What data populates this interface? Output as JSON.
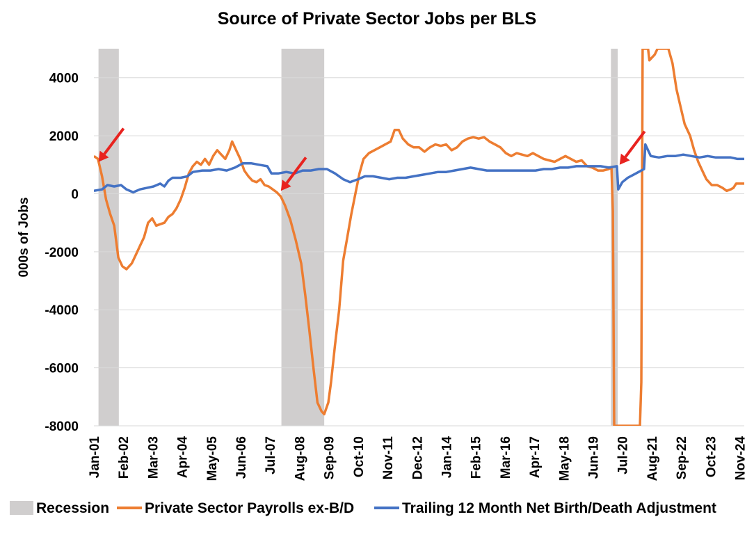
{
  "chart_data": {
    "type": "line",
    "title": "Source of Private Sector Jobs per BLS",
    "ylabel": "000s of Jobs",
    "xlabel": "",
    "ylim": [
      -8000,
      5000
    ],
    "y_ticks": [
      4000,
      2000,
      0,
      -2000,
      -4000,
      -6000,
      -8000
    ],
    "y_tick_labels": [
      "4000",
      "2000",
      "0",
      "-2000",
      "-4000",
      "-6000",
      "-8000"
    ],
    "x_range": [
      2001.0,
      2025.0
    ],
    "x_tick_labels": [
      "Jan-01",
      "Feb-02",
      "Mar-03",
      "Apr-04",
      "May-05",
      "Jun-06",
      "Jul-07",
      "Aug-08",
      "Sep-09",
      "Oct-10",
      "Nov-11",
      "Dec-12",
      "Jan-14",
      "Feb-15",
      "Mar-16",
      "Apr-17",
      "May-18",
      "Jun-19",
      "Jul-20",
      "Aug-21",
      "Sep-22",
      "Oct-23",
      "Nov-24"
    ],
    "x_tick_values": [
      2001.0,
      2002.083,
      2003.167,
      2004.25,
      2005.333,
      2006.417,
      2007.5,
      2008.583,
      2009.667,
      2010.75,
      2011.833,
      2012.917,
      2014.0,
      2015.083,
      2016.167,
      2017.25,
      2018.333,
      2019.417,
      2020.5,
      2021.583,
      2022.667,
      2023.75,
      2024.833
    ],
    "grid": "horizontal",
    "legend_position": "bottom",
    "recessions": [
      {
        "start": 2001.17,
        "end": 2001.92
      },
      {
        "start": 2007.92,
        "end": 2009.5
      },
      {
        "start": 2020.08,
        "end": 2020.33
      }
    ],
    "annotations": [
      {
        "type": "arrow",
        "color": "#E8231F",
        "x": 2001.17,
        "y": 1100
      },
      {
        "type": "arrow",
        "color": "#E8231F",
        "x": 2007.9,
        "y": 100
      },
      {
        "type": "arrow",
        "color": "#E8231F",
        "x": 2020.4,
        "y": 1000
      }
    ],
    "legend": [
      "Recession",
      "Private Sector Payrolls ex-B/D",
      "Trailing 12 Month Net Birth/Death Adjustment"
    ],
    "series": [
      {
        "name": "Private Sector Payrolls ex-B/D",
        "color": "#ED7D31",
        "points": [
          [
            2001.0,
            1300
          ],
          [
            2001.15,
            1200
          ],
          [
            2001.3,
            600
          ],
          [
            2001.45,
            -200
          ],
          [
            2001.6,
            -700
          ],
          [
            2001.75,
            -1100
          ],
          [
            2001.9,
            -2200
          ],
          [
            2002.05,
            -2500
          ],
          [
            2002.2,
            -2600
          ],
          [
            2002.4,
            -2400
          ],
          [
            2002.55,
            -2100
          ],
          [
            2002.7,
            -1800
          ],
          [
            2002.85,
            -1500
          ],
          [
            2003.0,
            -1000
          ],
          [
            2003.15,
            -850
          ],
          [
            2003.3,
            -1100
          ],
          [
            2003.45,
            -1050
          ],
          [
            2003.6,
            -1000
          ],
          [
            2003.75,
            -800
          ],
          [
            2003.9,
            -700
          ],
          [
            2004.05,
            -500
          ],
          [
            2004.2,
            -200
          ],
          [
            2004.35,
            200
          ],
          [
            2004.5,
            700
          ],
          [
            2004.65,
            950
          ],
          [
            2004.8,
            1100
          ],
          [
            2004.95,
            1000
          ],
          [
            2005.1,
            1200
          ],
          [
            2005.25,
            1000
          ],
          [
            2005.4,
            1300
          ],
          [
            2005.55,
            1500
          ],
          [
            2005.7,
            1350
          ],
          [
            2005.85,
            1200
          ],
          [
            2006.0,
            1500
          ],
          [
            2006.1,
            1800
          ],
          [
            2006.25,
            1500
          ],
          [
            2006.4,
            1200
          ],
          [
            2006.55,
            800
          ],
          [
            2006.7,
            600
          ],
          [
            2006.85,
            450
          ],
          [
            2007.0,
            400
          ],
          [
            2007.15,
            500
          ],
          [
            2007.3,
            300
          ],
          [
            2007.45,
            250
          ],
          [
            2007.6,
            150
          ],
          [
            2007.75,
            50
          ],
          [
            2007.9,
            -100
          ],
          [
            2008.05,
            -400
          ],
          [
            2008.25,
            -900
          ],
          [
            2008.45,
            -1600
          ],
          [
            2008.65,
            -2400
          ],
          [
            2008.8,
            -3500
          ],
          [
            2008.95,
            -4700
          ],
          [
            2009.1,
            -6000
          ],
          [
            2009.25,
            -7200
          ],
          [
            2009.4,
            -7500
          ],
          [
            2009.5,
            -7600
          ],
          [
            2009.65,
            -7200
          ],
          [
            2009.75,
            -6500
          ],
          [
            2009.9,
            -5200
          ],
          [
            2010.05,
            -4000
          ],
          [
            2010.2,
            -2300
          ],
          [
            2010.35,
            -1500
          ],
          [
            2010.5,
            -700
          ],
          [
            2010.65,
            0
          ],
          [
            2010.8,
            700
          ],
          [
            2010.95,
            1200
          ],
          [
            2011.15,
            1400
          ],
          [
            2011.35,
            1500
          ],
          [
            2011.55,
            1600
          ],
          [
            2011.75,
            1700
          ],
          [
            2011.95,
            1800
          ],
          [
            2012.1,
            2200
          ],
          [
            2012.25,
            2200
          ],
          [
            2012.4,
            1900
          ],
          [
            2012.6,
            1700
          ],
          [
            2012.8,
            1600
          ],
          [
            2013.0,
            1600
          ],
          [
            2013.2,
            1450
          ],
          [
            2013.4,
            1600
          ],
          [
            2013.6,
            1700
          ],
          [
            2013.8,
            1650
          ],
          [
            2014.0,
            1700
          ],
          [
            2014.2,
            1500
          ],
          [
            2014.4,
            1600
          ],
          [
            2014.6,
            1800
          ],
          [
            2014.8,
            1900
          ],
          [
            2015.0,
            1950
          ],
          [
            2015.2,
            1900
          ],
          [
            2015.4,
            1950
          ],
          [
            2015.6,
            1800
          ],
          [
            2015.8,
            1700
          ],
          [
            2016.0,
            1600
          ],
          [
            2016.2,
            1400
          ],
          [
            2016.4,
            1300
          ],
          [
            2016.6,
            1400
          ],
          [
            2016.8,
            1350
          ],
          [
            2017.0,
            1300
          ],
          [
            2017.2,
            1400
          ],
          [
            2017.4,
            1300
          ],
          [
            2017.6,
            1200
          ],
          [
            2017.8,
            1150
          ],
          [
            2018.0,
            1100
          ],
          [
            2018.2,
            1200
          ],
          [
            2018.4,
            1300
          ],
          [
            2018.6,
            1200
          ],
          [
            2018.8,
            1100
          ],
          [
            2019.0,
            1150
          ],
          [
            2019.2,
            950
          ],
          [
            2019.4,
            900
          ],
          [
            2019.6,
            800
          ],
          [
            2019.8,
            800
          ],
          [
            2020.0,
            850
          ],
          [
            2020.1,
            900
          ],
          [
            2020.15,
            -600
          ],
          [
            2020.2,
            -8000
          ],
          [
            2021.15,
            -8000
          ],
          [
            2021.2,
            -6500
          ],
          [
            2021.25,
            5000
          ],
          [
            2021.45,
            5000
          ],
          [
            2021.5,
            4600
          ],
          [
            2021.7,
            4800
          ],
          [
            2021.8,
            5000
          ],
          [
            2022.2,
            5000
          ],
          [
            2022.35,
            4500
          ],
          [
            2022.5,
            3600
          ],
          [
            2022.65,
            3000
          ],
          [
            2022.8,
            2400
          ],
          [
            2023.0,
            2000
          ],
          [
            2023.15,
            1500
          ],
          [
            2023.3,
            1100
          ],
          [
            2023.45,
            800
          ],
          [
            2023.6,
            500
          ],
          [
            2023.8,
            300
          ],
          [
            2024.0,
            300
          ],
          [
            2024.2,
            200
          ],
          [
            2024.35,
            100
          ],
          [
            2024.5,
            150
          ],
          [
            2024.6,
            200
          ],
          [
            2024.7,
            350
          ],
          [
            2025.0,
            350
          ]
        ]
      },
      {
        "name": "Trailing 12 Month Net Birth/Death Adjustment",
        "color": "#4472C4",
        "points": [
          [
            2001.0,
            100
          ],
          [
            2001.3,
            150
          ],
          [
            2001.5,
            300
          ],
          [
            2001.75,
            250
          ],
          [
            2002.0,
            300
          ],
          [
            2002.2,
            150
          ],
          [
            2002.45,
            50
          ],
          [
            2002.7,
            150
          ],
          [
            2002.95,
            200
          ],
          [
            2003.2,
            250
          ],
          [
            2003.45,
            350
          ],
          [
            2003.6,
            250
          ],
          [
            2003.75,
            450
          ],
          [
            2003.9,
            550
          ],
          [
            2004.2,
            550
          ],
          [
            2004.45,
            600
          ],
          [
            2004.65,
            750
          ],
          [
            2005.0,
            800
          ],
          [
            2005.3,
            800
          ],
          [
            2005.6,
            850
          ],
          [
            2005.9,
            800
          ],
          [
            2006.2,
            900
          ],
          [
            2006.5,
            1050
          ],
          [
            2006.8,
            1050
          ],
          [
            2007.1,
            1000
          ],
          [
            2007.4,
            950
          ],
          [
            2007.55,
            700
          ],
          [
            2007.8,
            700
          ],
          [
            2008.1,
            750
          ],
          [
            2008.4,
            700
          ],
          [
            2008.7,
            800
          ],
          [
            2009.0,
            800
          ],
          [
            2009.3,
            850
          ],
          [
            2009.6,
            850
          ],
          [
            2009.9,
            700
          ],
          [
            2010.2,
            500
          ],
          [
            2010.45,
            400
          ],
          [
            2010.75,
            500
          ],
          [
            2011.0,
            600
          ],
          [
            2011.3,
            600
          ],
          [
            2011.6,
            550
          ],
          [
            2011.9,
            500
          ],
          [
            2012.2,
            550
          ],
          [
            2012.5,
            550
          ],
          [
            2012.8,
            600
          ],
          [
            2013.1,
            650
          ],
          [
            2013.4,
            700
          ],
          [
            2013.7,
            750
          ],
          [
            2014.0,
            750
          ],
          [
            2014.3,
            800
          ],
          [
            2014.6,
            850
          ],
          [
            2014.9,
            900
          ],
          [
            2015.2,
            850
          ],
          [
            2015.5,
            800
          ],
          [
            2015.8,
            800
          ],
          [
            2016.1,
            800
          ],
          [
            2016.4,
            800
          ],
          [
            2016.7,
            800
          ],
          [
            2017.0,
            800
          ],
          [
            2017.3,
            800
          ],
          [
            2017.6,
            850
          ],
          [
            2017.9,
            850
          ],
          [
            2018.2,
            900
          ],
          [
            2018.5,
            900
          ],
          [
            2018.8,
            950
          ],
          [
            2019.1,
            950
          ],
          [
            2019.4,
            950
          ],
          [
            2019.7,
            950
          ],
          [
            2020.0,
            900
          ],
          [
            2020.3,
            950
          ],
          [
            2020.35,
            150
          ],
          [
            2020.5,
            400
          ],
          [
            2020.7,
            550
          ],
          [
            2021.0,
            700
          ],
          [
            2021.2,
            800
          ],
          [
            2021.3,
            850
          ],
          [
            2021.35,
            1700
          ],
          [
            2021.55,
            1300
          ],
          [
            2021.85,
            1250
          ],
          [
            2022.15,
            1300
          ],
          [
            2022.45,
            1300
          ],
          [
            2022.75,
            1350
          ],
          [
            2023.05,
            1300
          ],
          [
            2023.35,
            1250
          ],
          [
            2023.65,
            1300
          ],
          [
            2023.95,
            1250
          ],
          [
            2024.25,
            1250
          ],
          [
            2024.5,
            1250
          ],
          [
            2024.75,
            1200
          ],
          [
            2025.0,
            1200
          ]
        ]
      }
    ]
  }
}
